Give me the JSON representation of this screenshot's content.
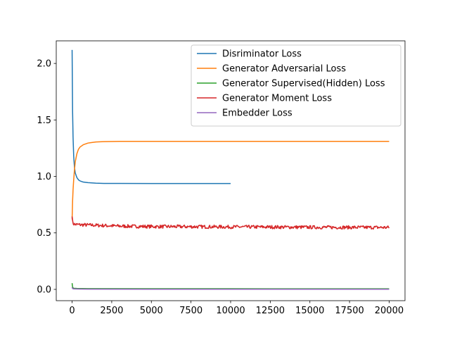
{
  "chart_data": {
    "type": "line",
    "title": "",
    "xlabel": "",
    "ylabel": "",
    "xlim": [
      -1000,
      21000
    ],
    "ylim": [
      -0.1,
      2.2
    ],
    "x_ticks": [
      0,
      2500,
      5000,
      7500,
      10000,
      12500,
      15000,
      17500,
      20000
    ],
    "x_tick_labels": [
      "0",
      "2500",
      "5000",
      "7500",
      "10000",
      "12500",
      "15000",
      "17500",
      "20000"
    ],
    "y_ticks": [
      0.0,
      0.5,
      1.0,
      1.5,
      2.0
    ],
    "y_tick_labels": [
      "0.0",
      "0.5",
      "1.0",
      "1.5",
      "2.0"
    ],
    "grid": false,
    "legend_position": "top-right",
    "series": [
      {
        "name": "Disriminator Loss",
        "color": "#1f77b4",
        "x": [
          0,
          30,
          60,
          100,
          150,
          200,
          300,
          400,
          500,
          700,
          1000,
          1500,
          2000,
          3000,
          5000,
          7500,
          10000
        ],
        "y": [
          2.12,
          1.58,
          1.35,
          1.18,
          1.08,
          1.03,
          0.99,
          0.97,
          0.96,
          0.95,
          0.945,
          0.94,
          0.938,
          0.938,
          0.937,
          0.937,
          0.937
        ]
      },
      {
        "name": "Generator Adversarial Loss",
        "color": "#ff7f0e",
        "x": [
          0,
          30,
          60,
          100,
          150,
          200,
          300,
          400,
          500,
          700,
          1000,
          1500,
          2000,
          3000,
          5000,
          10000,
          15000,
          20000
        ],
        "y": [
          0.62,
          0.78,
          0.88,
          0.97,
          1.06,
          1.13,
          1.2,
          1.24,
          1.26,
          1.28,
          1.295,
          1.305,
          1.308,
          1.31,
          1.31,
          1.31,
          1.31,
          1.31
        ]
      },
      {
        "name": "Generator Supervised(Hidden) Loss",
        "color": "#2ca02c",
        "x": [
          0,
          20,
          50,
          100,
          300,
          1000,
          5000,
          10000,
          15000,
          20000
        ],
        "y": [
          0.055,
          0.03,
          0.015,
          0.01,
          0.008,
          0.007,
          0.006,
          0.006,
          0.005,
          0.005
        ]
      },
      {
        "name": "Generator Moment Loss",
        "color": "#d62728",
        "x": [
          0,
          20,
          50,
          100,
          200,
          500,
          1000,
          2000,
          3000,
          5000,
          7500,
          10000,
          12500,
          15000,
          17500,
          20000
        ],
        "y": [
          0.66,
          0.6,
          0.585,
          0.58,
          0.575,
          0.572,
          0.57,
          0.565,
          0.56,
          0.556,
          0.555,
          0.553,
          0.552,
          0.55,
          0.549,
          0.548
        ]
      },
      {
        "name": "Embedder Loss",
        "color": "#9467bd",
        "x": [
          0,
          20,
          50,
          100,
          500,
          1000,
          5000,
          10000,
          15000,
          20000
        ],
        "y": [
          0.02,
          0.01,
          0.006,
          0.004,
          0.003,
          0.002,
          0.001,
          0.001,
          0.001,
          0.001
        ]
      }
    ]
  }
}
